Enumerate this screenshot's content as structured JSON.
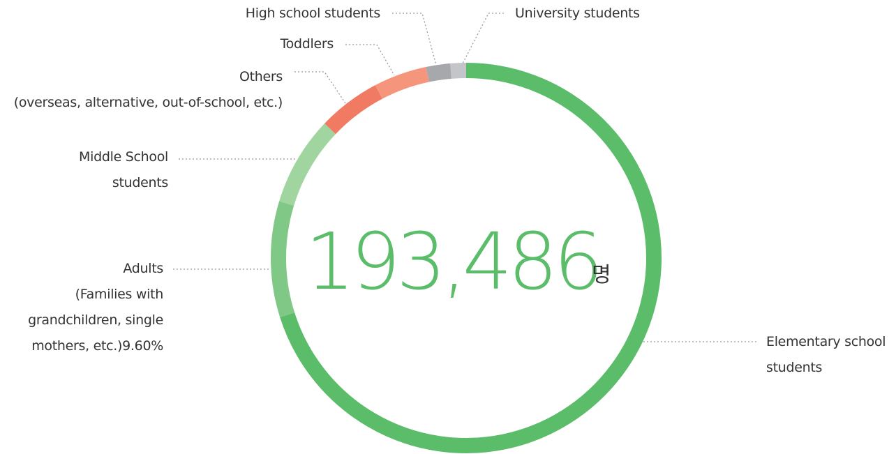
{
  "chart_data": {
    "type": "donut",
    "center_text": "193,486",
    "center_unit": "명",
    "categories": [
      "Elementary school\nstudents",
      "Adults\n(Families with\ngrandchildren, single\nmothers, etc.)",
      "Middle School\nstudents",
      "Others\n(overseas, alternative, out-of-school, etc.)",
      "Toddlers",
      "High school students",
      "University students"
    ],
    "values": [
      70.1,
      9.6,
      7.4,
      5.2,
      4.4,
      2.0,
      1.3
    ],
    "value_labels": [
      null,
      "9.60%",
      null,
      null,
      null,
      null,
      null
    ],
    "colors": [
      "#5bbd69",
      "#7fc886",
      "#a0d5a0",
      "#f07a62",
      "#f5967c",
      "#a7a8ac",
      "#c4c5c9"
    ]
  }
}
